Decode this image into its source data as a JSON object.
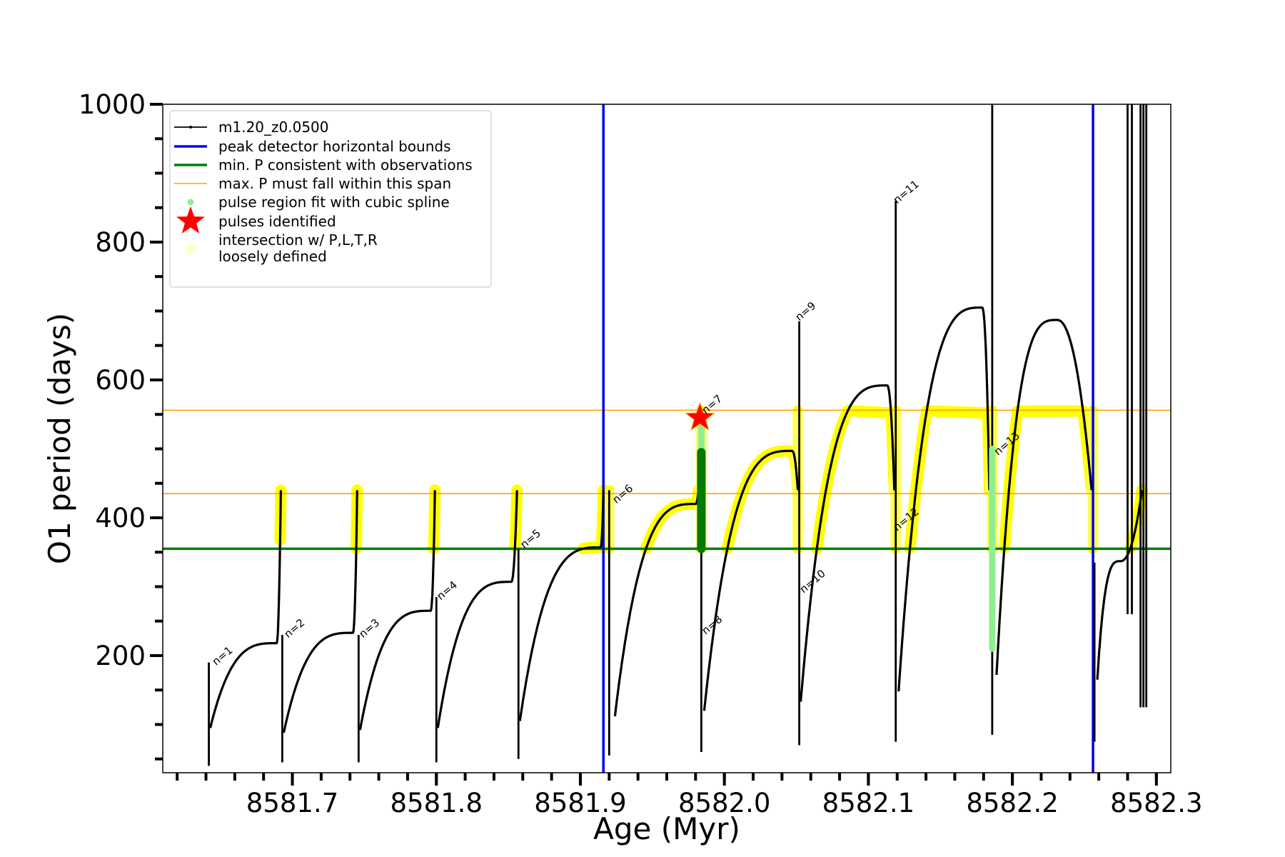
{
  "chart_data": {
    "type": "line",
    "xlabel": "Age (Myr)",
    "ylabel": "O1 period (days)",
    "xlim": [
      8581.61,
      8582.31
    ],
    "ylim": [
      30,
      1000
    ],
    "x_ticks": [
      8581.7,
      8581.8,
      8581.9,
      8582.0,
      8582.1,
      8582.2,
      8582.3
    ],
    "x_tick_labels": [
      "8581.7",
      "8581.8",
      "8581.9",
      "8582.0",
      "8582.1",
      "8582.2",
      "8582.3"
    ],
    "x_minor_step": 0.02,
    "y_ticks": [
      200,
      400,
      600,
      800,
      1000
    ],
    "y_tick_labels": [
      "200",
      "400",
      "600",
      "800",
      "1000"
    ],
    "y_minor_step": 50,
    "legend_position": "top-left",
    "legend": [
      {
        "label": "m1.20_z0.0500",
        "marker": "line-dot",
        "color": "#000000"
      },
      {
        "label": "peak detector horizontal bounds",
        "marker": "line-thick",
        "color": "#0000ee"
      },
      {
        "label": "min. P consistent with observations",
        "marker": "line-thick",
        "color": "#008000"
      },
      {
        "label": "max. P must fall within this span",
        "marker": "line-thin",
        "color": "#ffa500"
      },
      {
        "label": "pulse region fit with cubic spline",
        "marker": "dot",
        "color": "#90ee90"
      },
      {
        "label": "pulses identified",
        "marker": "star",
        "color": "#ff0000"
      },
      {
        "label": "intersection w/ P,L,T,R",
        "label2": "loosely defined",
        "marker": "circle",
        "color": "#ffffcc"
      }
    ],
    "reference_lines": {
      "vertical_blue": [
        8581.916,
        8582.256
      ],
      "horizontal_green": 355,
      "horizontal_orange": [
        435,
        556
      ]
    },
    "pulse_labels": [
      {
        "text": "n=1",
        "x": 8581.645,
        "y": 185
      },
      {
        "text": "n=2",
        "x": 8581.695,
        "y": 225
      },
      {
        "text": "n=3",
        "x": 8581.747,
        "y": 225
      },
      {
        "text": "n=4",
        "x": 8581.801,
        "y": 280
      },
      {
        "text": "n=5",
        "x": 8581.859,
        "y": 355
      },
      {
        "text": "n=6",
        "x": 8581.923,
        "y": 420
      },
      {
        "text": "n=7",
        "x": 8581.985,
        "y": 550
      },
      {
        "text": "n=8",
        "x": 8581.985,
        "y": 230
      },
      {
        "text": "n=9",
        "x": 8582.05,
        "y": 685
      },
      {
        "text": "n=10",
        "x": 8582.053,
        "y": 290
      },
      {
        "text": "n=11",
        "x": 8582.118,
        "y": 855
      },
      {
        "text": "n=12",
        "x": 8582.118,
        "y": 380
      },
      {
        "text": "n=13",
        "x": 8582.188,
        "y": 490
      }
    ],
    "pulse_identified": [
      {
        "x": 8581.983,
        "y": 545
      }
    ],
    "series_model": [
      {
        "x0": 8581.643,
        "x1": 8581.692,
        "start": 95,
        "peak": 218,
        "peak_x": 8581.689
      },
      {
        "x0": 8581.694,
        "x1": 8581.745,
        "start": 88,
        "peak": 233,
        "peak_x": 8581.742
      },
      {
        "x0": 8581.747,
        "x1": 8581.799,
        "start": 92,
        "peak": 265,
        "peak_x": 8581.796
      },
      {
        "x0": 8581.801,
        "x1": 8581.856,
        "start": 95,
        "peak": 307,
        "peak_x": 8581.852
      },
      {
        "x0": 8581.858,
        "x1": 8581.916,
        "start": 105,
        "peak": 357,
        "peak_x": 8581.914
      },
      {
        "x0": 8581.924,
        "x1": 8581.982,
        "start": 112,
        "peak": 420,
        "peak_x": 8581.98
      },
      {
        "x0": 8581.986,
        "x1": 8582.051,
        "start": 120,
        "peak": 497,
        "peak_x": 8582.047
      },
      {
        "x0": 8582.053,
        "x1": 8582.118,
        "start": 133,
        "peak": 592,
        "peak_x": 8582.113
      },
      {
        "x0": 8582.121,
        "x1": 8582.184,
        "start": 148,
        "peak": 705,
        "peak_x": 8582.179
      },
      {
        "x0": 8582.189,
        "x1": 8582.255,
        "start": 172,
        "peak": 687,
        "peak_x": 8582.231
      },
      {
        "x0": 8582.259,
        "x1": 8582.29,
        "start": 165,
        "peak": 337,
        "peak_x": 8582.275
      }
    ],
    "series_spikes": [
      {
        "x": 8581.642,
        "ymin": 40,
        "ymax": 190
      },
      {
        "x": 8581.693,
        "ymin": 45,
        "ymax": 230
      },
      {
        "x": 8581.746,
        "ymin": 45,
        "ymax": 230
      },
      {
        "x": 8581.8,
        "ymin": 45,
        "ymax": 285
      },
      {
        "x": 8581.857,
        "ymin": 50,
        "ymax": 355
      },
      {
        "x": 8581.92,
        "ymin": 55,
        "ymax": 440
      },
      {
        "x": 8581.984,
        "ymin": 60,
        "ymax": 500
      },
      {
        "x": 8582.052,
        "ymin": 70,
        "ymax": 685
      },
      {
        "x": 8582.119,
        "ymin": 75,
        "ymax": 860
      },
      {
        "x": 8582.186,
        "ymin": 85,
        "ymax": 1000
      },
      {
        "x": 8582.257,
        "ymin": 75,
        "ymax": 335
      },
      {
        "x": 8582.28,
        "ymin": 260,
        "ymax": 1000
      },
      {
        "x": 8582.283,
        "ymin": 260,
        "ymax": 1000
      },
      {
        "x": 8582.289,
        "ymin": 125,
        "ymax": 1000
      },
      {
        "x": 8582.291,
        "ymin": 125,
        "ymax": 1000
      },
      {
        "x": 8582.293,
        "ymin": 125,
        "ymax": 1000
      }
    ],
    "intersection_vertical": [
      {
        "x": 8581.92,
        "ymin": 355,
        "ymax": 440
      },
      {
        "x": 8581.984,
        "ymin": 355,
        "ymax": 556
      },
      {
        "x": 8582.051,
        "ymin": 355,
        "ymax": 556
      },
      {
        "x": 8582.119,
        "ymin": 355,
        "ymax": 556
      },
      {
        "x": 8582.186,
        "ymin": 355,
        "ymax": 556
      },
      {
        "x": 8582.256,
        "ymin": 355,
        "ymax": 556
      }
    ],
    "intersection_horizontal": [
      {
        "x0": 8581.91,
        "x1": 8581.918,
        "y": 357
      }
    ],
    "spline_green_light": [
      {
        "x": 8581.984,
        "ymin": 355,
        "ymax": 540
      },
      {
        "x": 8582.186,
        "ymin": 210,
        "ymax": 500
      }
    ],
    "spline_green_dark": [
      {
        "x": 8581.984,
        "ymin": 355,
        "ymax": 495
      }
    ]
  }
}
